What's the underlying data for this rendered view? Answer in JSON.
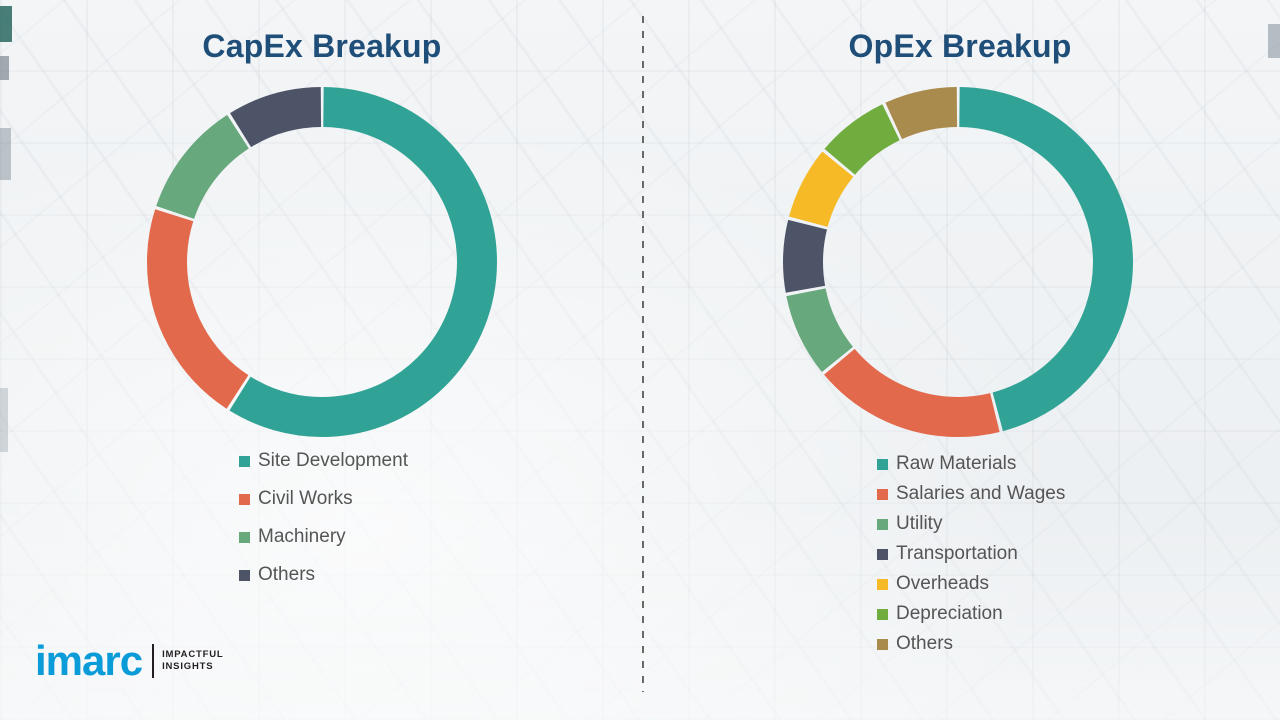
{
  "chart_data": [
    {
      "type": "pie",
      "style": "donut",
      "title": "CapEx Breakup",
      "legend_position": "bottom-left",
      "units": "percent-estimated",
      "segments": [
        {
          "label": "Site Development",
          "value": 59,
          "color": "#31A396"
        },
        {
          "label": "Civil Works",
          "value": 21,
          "color": "#E2694B"
        },
        {
          "label": "Machinery",
          "value": 11,
          "color": "#68A87D"
        },
        {
          "label": "Others",
          "value": 9,
          "color": "#4D5468"
        }
      ]
    },
    {
      "type": "pie",
      "style": "donut",
      "title": "OpEx Breakup",
      "legend_position": "bottom-left",
      "units": "percent-estimated",
      "segments": [
        {
          "label": "Raw Materials",
          "value": 46,
          "color": "#31A396"
        },
        {
          "label": "Salaries and Wages",
          "value": 18,
          "color": "#E2694B"
        },
        {
          "label": "Utility",
          "value": 8,
          "color": "#68A87D"
        },
        {
          "label": "Transportation",
          "value": 7,
          "color": "#4D5468"
        },
        {
          "label": "Overheads",
          "value": 7,
          "color": "#F6BA27"
        },
        {
          "label": "Depreciation",
          "value": 7,
          "color": "#71AD3E"
        },
        {
          "label": "Others",
          "value": 7,
          "color": "#A98B4D"
        }
      ]
    }
  ],
  "branding": {
    "wordmark": "imarc",
    "tagline_line1": "IMPACTFUL",
    "tagline_line2": "INSIGHTS",
    "wordmark_color": "#0A9BD9"
  },
  "colors": {
    "title": "#1F4E79",
    "legend_text": "#555555",
    "divider": "#4F4F4F"
  }
}
